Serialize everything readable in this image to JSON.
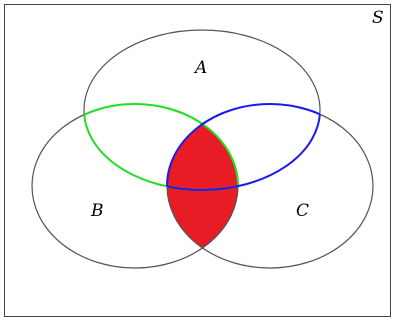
{
  "diagram": {
    "universe_label": "S",
    "sets": [
      {
        "key": "a",
        "label": "A"
      },
      {
        "key": "b",
        "label": "B"
      },
      {
        "key": "c",
        "label": "C"
      }
    ],
    "colors": {
      "background": "#ffffff",
      "frame": "#444444",
      "circle_outline": "#555555",
      "highlight_fill": "#e81c24",
      "a_intersect_b_arc": "#22dd22",
      "a_intersect_c_arc": "#1a1aee"
    }
  }
}
